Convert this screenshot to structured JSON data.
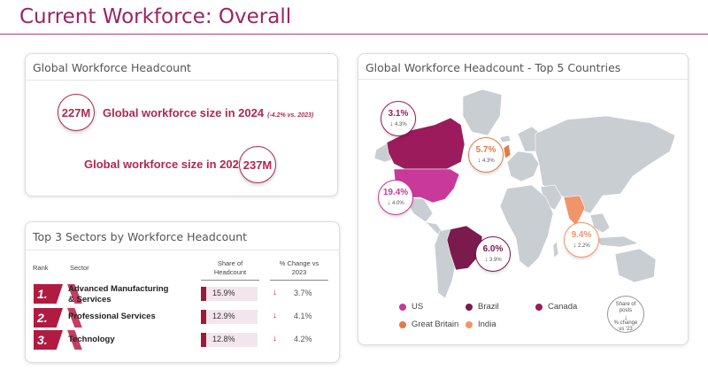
{
  "page": {
    "title": "Current Workforce: Overall"
  },
  "headcount": {
    "title": "Global Workforce Headcount",
    "stat_2024": {
      "value": "227M",
      "label": "Global workforce size in 2024",
      "note": "(-4.2% vs. 2023)"
    },
    "stat_2023": {
      "value": "237M",
      "label": "Global workforce size in 2023"
    }
  },
  "sectors": {
    "title": "Top 3 Sectors by Workforce Headcount",
    "headers": {
      "rank": "Rank",
      "sector": "Sector",
      "share": "Share of\nHeadcount",
      "change": "% Change vs\n2023"
    },
    "rows": [
      {
        "rank": "1.",
        "sector": "Advanced Manufacturing\n& Services",
        "share": "15.9%",
        "change": "3.7%",
        "share_value": 15.9
      },
      {
        "rank": "2.",
        "sector": "Professional Services",
        "share": "12.9%",
        "change": "4.1%",
        "share_value": 12.9
      },
      {
        "rank": "3.",
        "sector": "Technology",
        "share": "12.8%",
        "change": "4.2%",
        "share_value": 12.8
      }
    ]
  },
  "map": {
    "title": "Global Workforce Headcount - Top 5 Countries",
    "arrow_glyph": "↓",
    "callouts": [
      {
        "country": "Canada",
        "share": "3.1%",
        "change": "4.3%",
        "color": "#9b1b5c"
      },
      {
        "country": "US",
        "share": "19.4%",
        "change": "4.0%",
        "color": "#c8399a"
      },
      {
        "country": "Brazil",
        "share": "6.0%",
        "change": "3.9%",
        "color": "#7a1a4d"
      },
      {
        "country": "Great Britain",
        "share": "5.7%",
        "change": "4.3%",
        "color": "#e07a4a"
      },
      {
        "country": "India",
        "share": "9.4%",
        "change": "2.2%",
        "color": "#f0946a"
      }
    ],
    "legend": [
      {
        "label": "US",
        "color": "#c8399a"
      },
      {
        "label": "Brazil",
        "color": "#7a1a4d"
      },
      {
        "label": "Canada",
        "color": "#9b1b5c"
      },
      {
        "label": "Great Britain",
        "color": "#e07a4a"
      },
      {
        "label": "India",
        "color": "#f0946a"
      }
    ],
    "key": {
      "line1": "Share of",
      "line2": "posts",
      "arrow": "↓",
      "line3": "% change",
      "line4": "vs '23"
    }
  },
  "colors": {
    "brand": "#9b2462",
    "accent": "#b01c40",
    "land": "#c9ced3"
  }
}
